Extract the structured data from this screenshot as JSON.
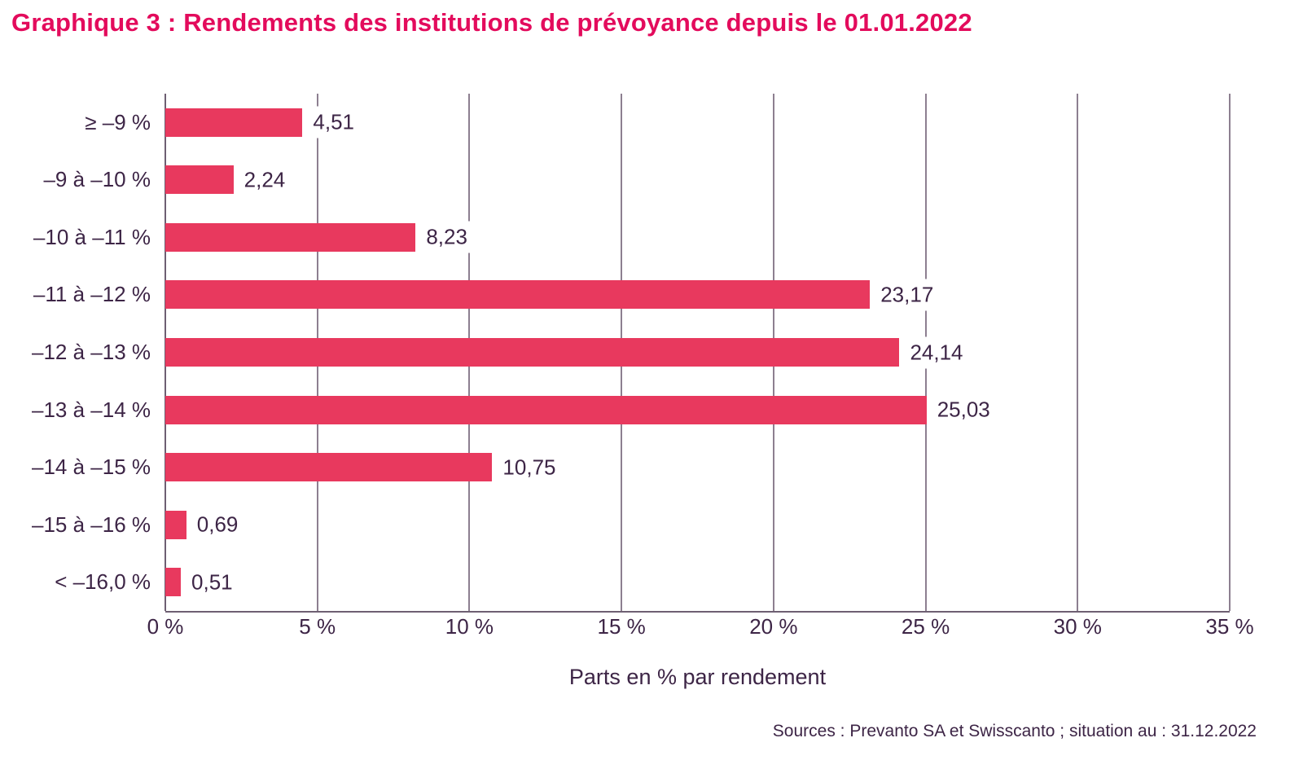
{
  "title": "Graphique 3 : Rendements des institutions de prévoyance depuis le 01.01.2022",
  "source_note": "Sources : Prevanto SA et Swisscanto ; situation au : 31.12.2022",
  "colors": {
    "title": "#e30b5c",
    "bar": "#e8395e",
    "text": "#3d2546",
    "gridline": "#8d7f90",
    "axis": "#6e5f72",
    "background": "#ffffff"
  },
  "chart_data": {
    "type": "bar",
    "orientation": "horizontal",
    "title": "Graphique 3 : Rendements des institutions de prévoyance depuis le 01.01.2022",
    "categories": [
      "≥ –9 %",
      "–9 à –10 %",
      "–10 à –11 %",
      "–11 à –12 %",
      "–12 à –13 %",
      "–13 à –14 %",
      "–14 à –15 %",
      "–15 à –16 %",
      "< –16,0 %"
    ],
    "values": [
      4.51,
      2.24,
      8.23,
      23.17,
      24.14,
      25.03,
      10.75,
      0.69,
      0.51
    ],
    "value_labels": [
      "4,51",
      "2,24",
      "8,23",
      "23,17",
      "24,14",
      "25,03",
      "10,75",
      "0,69",
      "0,51"
    ],
    "xlabel": "Parts en % par rendement",
    "ylabel": "",
    "xlim": [
      0,
      35
    ],
    "xtick_values": [
      0,
      5,
      10,
      15,
      20,
      25,
      30,
      35
    ],
    "xtick_labels": [
      "0 %",
      "5 %",
      "10 %",
      "15 %",
      "20 %",
      "25 %",
      "30 %",
      "35 %"
    ],
    "grid": "vertical",
    "legend": "none"
  }
}
